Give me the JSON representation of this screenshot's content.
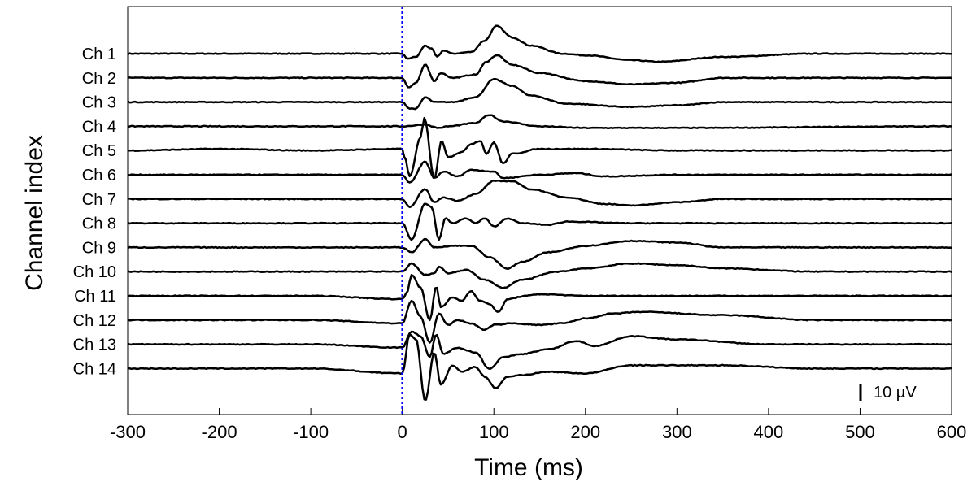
{
  "chart_data": {
    "type": "line",
    "title": "",
    "xlabel": "Time (ms)",
    "ylabel": "Channel index",
    "xlim": [
      -300,
      600
    ],
    "xticks": [
      -300,
      -200,
      -100,
      0,
      100,
      200,
      300,
      400,
      500,
      600
    ],
    "xtick_labels": [
      "-300",
      "-200",
      "-100",
      "0",
      "100",
      "200",
      "300",
      "400",
      "500",
      "600"
    ],
    "stimulus_marker": {
      "x": 0,
      "color": "#0000ff",
      "style": "dotted"
    },
    "scale_bar": {
      "value": 10,
      "unit": "µV",
      "label": "10 µV"
    },
    "line_color": "#000000",
    "series": [
      {
        "name": "Ch 1",
        "points": [
          [
            -300,
            0
          ],
          [
            -250,
            0
          ],
          [
            -200,
            0
          ],
          [
            -100,
            0
          ],
          [
            0,
            0
          ],
          [
            5,
            -3
          ],
          [
            15,
            -2
          ],
          [
            25,
            5
          ],
          [
            32,
            3
          ],
          [
            38,
            -2
          ],
          [
            45,
            2
          ],
          [
            55,
            0
          ],
          [
            75,
            1
          ],
          [
            90,
            8
          ],
          [
            103,
            17
          ],
          [
            120,
            10
          ],
          [
            140,
            5
          ],
          [
            175,
            0
          ],
          [
            200,
            -1
          ],
          [
            250,
            -4
          ],
          [
            280,
            -5
          ],
          [
            350,
            -2
          ],
          [
            450,
            0
          ],
          [
            600,
            0
          ]
        ]
      },
      {
        "name": "Ch 2",
        "points": [
          [
            -300,
            0
          ],
          [
            -200,
            0
          ],
          [
            -100,
            0
          ],
          [
            0,
            0
          ],
          [
            7,
            -6
          ],
          [
            15,
            -3
          ],
          [
            25,
            8
          ],
          [
            35,
            -2
          ],
          [
            42,
            3
          ],
          [
            55,
            0
          ],
          [
            80,
            2
          ],
          [
            92,
            10
          ],
          [
            103,
            14
          ],
          [
            120,
            8
          ],
          [
            150,
            3
          ],
          [
            200,
            -2
          ],
          [
            250,
            -4
          ],
          [
            300,
            -3
          ],
          [
            350,
            0
          ],
          [
            600,
            0
          ]
        ]
      },
      {
        "name": "Ch 3",
        "points": [
          [
            -300,
            0
          ],
          [
            -200,
            0
          ],
          [
            -100,
            0
          ],
          [
            0,
            0
          ],
          [
            8,
            -4
          ],
          [
            15,
            -4
          ],
          [
            25,
            3
          ],
          [
            35,
            0
          ],
          [
            55,
            0
          ],
          [
            80,
            3
          ],
          [
            100,
            14
          ],
          [
            120,
            10
          ],
          [
            140,
            4
          ],
          [
            180,
            -1
          ],
          [
            250,
            -3
          ],
          [
            300,
            -2
          ],
          [
            350,
            0
          ],
          [
            600,
            0
          ]
        ]
      },
      {
        "name": "Ch 4",
        "points": [
          [
            -300,
            0
          ],
          [
            -100,
            0
          ],
          [
            0,
            0
          ],
          [
            25,
            1
          ],
          [
            40,
            -1
          ],
          [
            50,
            0
          ],
          [
            80,
            2
          ],
          [
            95,
            7
          ],
          [
            110,
            3
          ],
          [
            150,
            0
          ],
          [
            200,
            -1
          ],
          [
            300,
            -1
          ],
          [
            600,
            0
          ]
        ]
      },
      {
        "name": "Ch 5",
        "points": [
          [
            -300,
            0
          ],
          [
            -200,
            1
          ],
          [
            -100,
            0
          ],
          [
            0,
            1
          ],
          [
            3,
            -5
          ],
          [
            8,
            -16
          ],
          [
            20,
            8
          ],
          [
            24,
            20
          ],
          [
            35,
            -17
          ],
          [
            43,
            6
          ],
          [
            50,
            -4
          ],
          [
            65,
            -1
          ],
          [
            75,
            4
          ],
          [
            85,
            6
          ],
          [
            92,
            -2
          ],
          [
            100,
            5
          ],
          [
            110,
            -8
          ],
          [
            120,
            -2
          ],
          [
            150,
            1
          ],
          [
            200,
            1
          ],
          [
            300,
            0
          ],
          [
            600,
            0
          ]
        ]
      },
      {
        "name": "Ch 6",
        "points": [
          [
            -300,
            0
          ],
          [
            -100,
            0
          ],
          [
            0,
            0
          ],
          [
            8,
            -5
          ],
          [
            25,
            8
          ],
          [
            35,
            -2
          ],
          [
            45,
            2
          ],
          [
            60,
            -1
          ],
          [
            75,
            3
          ],
          [
            100,
            2
          ],
          [
            110,
            -2
          ],
          [
            150,
            0
          ],
          [
            190,
            1
          ],
          [
            220,
            -1
          ],
          [
            300,
            0
          ],
          [
            600,
            0
          ]
        ]
      },
      {
        "name": "Ch 7",
        "points": [
          [
            -300,
            0
          ],
          [
            -100,
            0
          ],
          [
            0,
            0
          ],
          [
            8,
            -5
          ],
          [
            25,
            6
          ],
          [
            35,
            -2
          ],
          [
            45,
            1
          ],
          [
            60,
            -1
          ],
          [
            80,
            3
          ],
          [
            100,
            11
          ],
          [
            120,
            11
          ],
          [
            140,
            6
          ],
          [
            180,
            1
          ],
          [
            220,
            -3
          ],
          [
            250,
            -4
          ],
          [
            300,
            -2
          ],
          [
            350,
            0
          ],
          [
            600,
            0
          ]
        ]
      },
      {
        "name": "Ch 8",
        "points": [
          [
            -300,
            0
          ],
          [
            -100,
            0
          ],
          [
            0,
            0
          ],
          [
            10,
            -10
          ],
          [
            25,
            12
          ],
          [
            32,
            10
          ],
          [
            40,
            -10
          ],
          [
            47,
            3
          ],
          [
            55,
            0
          ],
          [
            70,
            3
          ],
          [
            80,
            0
          ],
          [
            90,
            3
          ],
          [
            100,
            -2
          ],
          [
            115,
            3
          ],
          [
            130,
            0
          ],
          [
            160,
            -1
          ],
          [
            180,
            1
          ],
          [
            250,
            0
          ],
          [
            600,
            0
          ]
        ]
      },
      {
        "name": "Ch 9",
        "points": [
          [
            -300,
            0
          ],
          [
            -100,
            0
          ],
          [
            0,
            0
          ],
          [
            10,
            -3
          ],
          [
            25,
            5
          ],
          [
            35,
            0
          ],
          [
            55,
            1
          ],
          [
            75,
            1
          ],
          [
            95,
            -6
          ],
          [
            115,
            -13
          ],
          [
            130,
            -9
          ],
          [
            160,
            -3
          ],
          [
            200,
            1
          ],
          [
            250,
            4
          ],
          [
            300,
            3
          ],
          [
            350,
            0
          ],
          [
            600,
            0
          ]
        ]
      },
      {
        "name": "Ch 10",
        "points": [
          [
            -300,
            0
          ],
          [
            -100,
            0
          ],
          [
            0,
            0
          ],
          [
            10,
            5
          ],
          [
            25,
            -2
          ],
          [
            35,
            -1
          ],
          [
            40,
            3
          ],
          [
            50,
            -1
          ],
          [
            70,
            1
          ],
          [
            90,
            -5
          ],
          [
            110,
            -10
          ],
          [
            130,
            -5
          ],
          [
            170,
            0
          ],
          [
            200,
            2
          ],
          [
            250,
            5
          ],
          [
            300,
            4
          ],
          [
            350,
            2
          ],
          [
            450,
            0
          ],
          [
            600,
            0
          ]
        ]
      },
      {
        "name": "Ch 11",
        "points": [
          [
            -300,
            0
          ],
          [
            -100,
            0
          ],
          [
            0,
            -2
          ],
          [
            5,
            2
          ],
          [
            10,
            13
          ],
          [
            20,
            5
          ],
          [
            30,
            -15
          ],
          [
            37,
            6
          ],
          [
            42,
            -7
          ],
          [
            55,
            -1
          ],
          [
            65,
            -3
          ],
          [
            75,
            3
          ],
          [
            85,
            -3
          ],
          [
            95,
            -5
          ],
          [
            105,
            -10
          ],
          [
            115,
            -2
          ],
          [
            135,
            0
          ],
          [
            150,
            1
          ],
          [
            200,
            0
          ],
          [
            600,
            0
          ]
        ]
      },
      {
        "name": "Ch 12",
        "points": [
          [
            -300,
            0
          ],
          [
            -100,
            0
          ],
          [
            0,
            -2
          ],
          [
            10,
            12
          ],
          [
            20,
            2
          ],
          [
            30,
            -14
          ],
          [
            40,
            4
          ],
          [
            50,
            -3
          ],
          [
            60,
            0
          ],
          [
            75,
            -2
          ],
          [
            90,
            -6
          ],
          [
            100,
            -3
          ],
          [
            120,
            -2
          ],
          [
            150,
            -3
          ],
          [
            175,
            -2
          ],
          [
            200,
            1
          ],
          [
            230,
            4
          ],
          [
            260,
            5
          ],
          [
            350,
            3
          ],
          [
            450,
            0
          ],
          [
            600,
            0
          ]
        ]
      },
      {
        "name": "Ch 13",
        "points": [
          [
            -300,
            0
          ],
          [
            -100,
            0
          ],
          [
            0,
            -2
          ],
          [
            10,
            8
          ],
          [
            20,
            5
          ],
          [
            30,
            -8
          ],
          [
            37,
            6
          ],
          [
            45,
            -6
          ],
          [
            60,
            -2
          ],
          [
            80,
            -5
          ],
          [
            95,
            -15
          ],
          [
            110,
            -8
          ],
          [
            130,
            -6
          ],
          [
            160,
            -3
          ],
          [
            190,
            2
          ],
          [
            210,
            -1
          ],
          [
            250,
            5
          ],
          [
            300,
            3
          ],
          [
            400,
            0
          ],
          [
            600,
            0
          ]
        ]
      },
      {
        "name": "Ch 14",
        "points": [
          [
            -300,
            0
          ],
          [
            -100,
            0
          ],
          [
            0,
            -3
          ],
          [
            8,
            21
          ],
          [
            15,
            18
          ],
          [
            25,
            -20
          ],
          [
            35,
            10
          ],
          [
            42,
            -10
          ],
          [
            55,
            2
          ],
          [
            65,
            -2
          ],
          [
            80,
            1
          ],
          [
            90,
            -5
          ],
          [
            102,
            -12
          ],
          [
            115,
            -5
          ],
          [
            130,
            -4
          ],
          [
            160,
            -2
          ],
          [
            200,
            -3
          ],
          [
            250,
            2
          ],
          [
            350,
            2
          ],
          [
            450,
            0
          ],
          [
            600,
            0
          ]
        ]
      }
    ]
  }
}
